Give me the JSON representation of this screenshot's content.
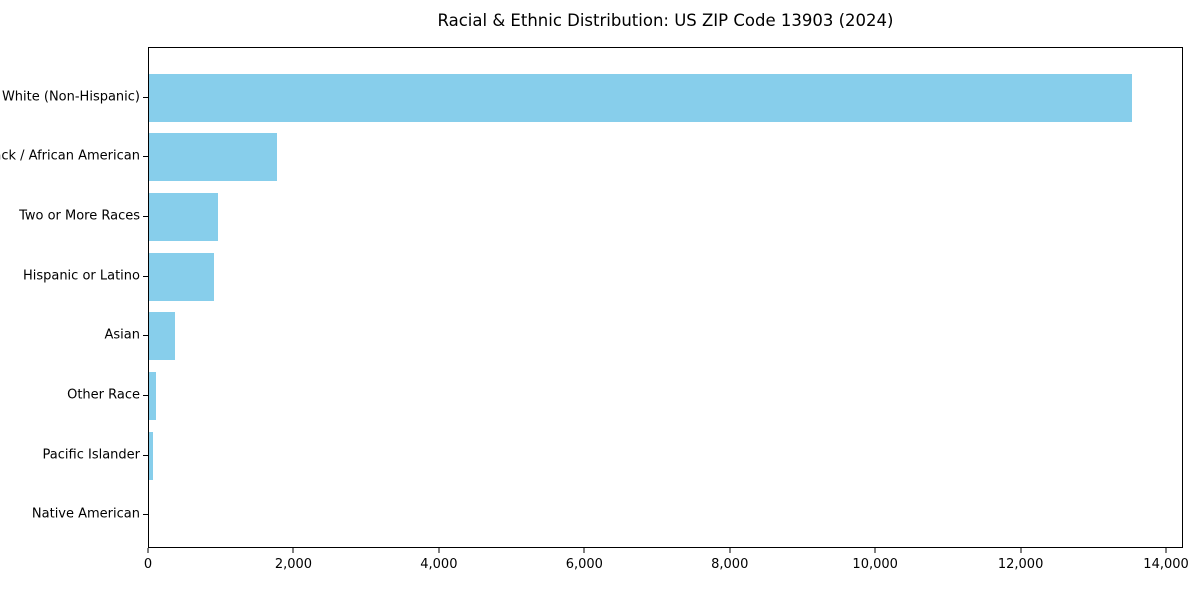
{
  "chart_data": {
    "type": "bar",
    "orientation": "horizontal",
    "title": "Racial & Ethnic Distribution: US ZIP Code 13903 (2024)",
    "xlabel": "",
    "ylabel": "",
    "categories": [
      "White (Non-Hispanic)",
      "Black / African American",
      "Two or More Races",
      "Hispanic or Latino",
      "Asian",
      "Other Race",
      "Pacific Islander",
      "Native American"
    ],
    "values": [
      13540,
      1770,
      950,
      890,
      360,
      90,
      50,
      0
    ],
    "bar_color": "#87CEEB",
    "xlim": [
      0,
      14233
    ],
    "xticks": [
      0,
      2000,
      4000,
      6000,
      8000,
      10000,
      12000,
      14000
    ],
    "xtick_labels": [
      "0",
      "2,000",
      "4,000",
      "6,000",
      "8,000",
      "10,000",
      "12,000",
      "14,000"
    ],
    "grid": false,
    "legend": null
  }
}
